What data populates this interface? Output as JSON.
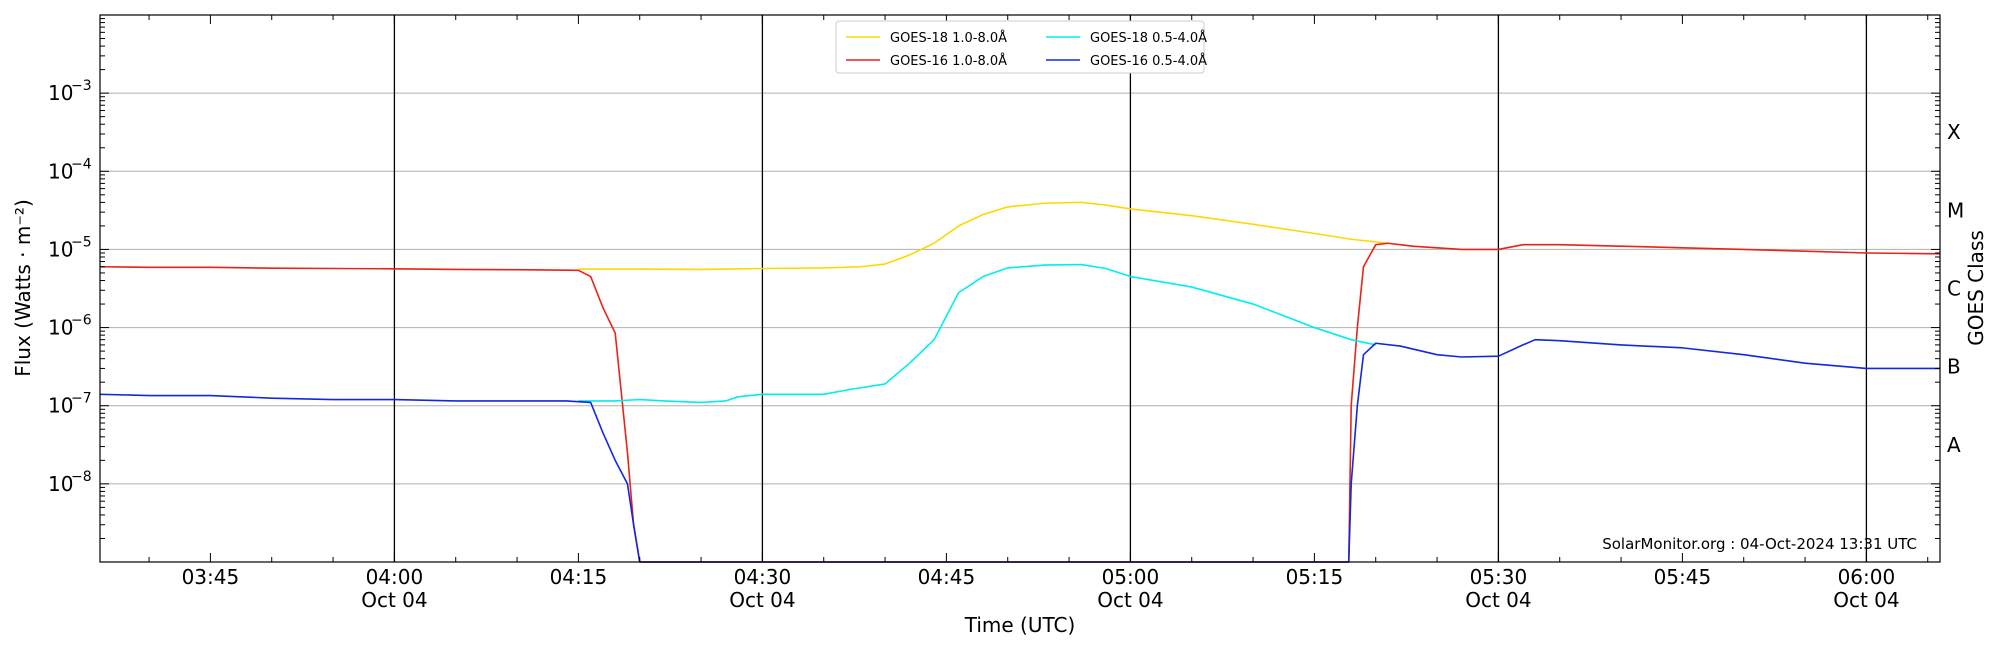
{
  "chart_data": {
    "type": "line",
    "xlabel": "Time (UTC)",
    "ylabel": "Flux (Watts · m⁻²)",
    "y2label": "GOES Class",
    "yscale": "log",
    "xlim": [
      "03:36",
      "06:06"
    ],
    "ylim": [
      1e-09,
      0.01
    ],
    "grid": "horizontal",
    "legend_placement": "top-center",
    "credit": "SolarMonitor.org : 04-Oct-2024 13:31 UTC",
    "x_ticks": [
      {
        "time": "03:45",
        "label": "03:45",
        "sublabel": ""
      },
      {
        "time": "04:00",
        "label": "04:00",
        "sublabel": "Oct 04"
      },
      {
        "time": "04:15",
        "label": "04:15",
        "sublabel": ""
      },
      {
        "time": "04:30",
        "label": "04:30",
        "sublabel": "Oct 04"
      },
      {
        "time": "04:45",
        "label": "04:45",
        "sublabel": ""
      },
      {
        "time": "05:00",
        "label": "05:00",
        "sublabel": "Oct 04"
      },
      {
        "time": "05:15",
        "label": "05:15",
        "sublabel": ""
      },
      {
        "time": "05:30",
        "label": "05:30",
        "sublabel": "Oct 04"
      },
      {
        "time": "05:45",
        "label": "05:45",
        "sublabel": ""
      },
      {
        "time": "06:00",
        "label": "06:00",
        "sublabel": "Oct 04"
      }
    ],
    "vertical_lines": [
      "04:00",
      "04:30",
      "05:00",
      "05:30",
      "06:00"
    ],
    "y_ticks": [
      {
        "value": 1e-08,
        "label": "10",
        "exponent": "−8"
      },
      {
        "value": 1e-07,
        "label": "10",
        "exponent": "−7"
      },
      {
        "value": 1e-06,
        "label": "10",
        "exponent": "−6"
      },
      {
        "value": 1e-05,
        "label": "10",
        "exponent": "−5"
      },
      {
        "value": 0.0001,
        "label": "10",
        "exponent": "−4"
      },
      {
        "value": 0.001,
        "label": "10",
        "exponent": "−3"
      }
    ],
    "gridlines": [
      1e-08,
      1e-07,
      1e-06,
      1e-05,
      0.0001,
      0.001
    ],
    "goes_classes": [
      {
        "label": "A",
        "value": 3.16e-08
      },
      {
        "label": "B",
        "value": 3.16e-07
      },
      {
        "label": "C",
        "value": 3.16e-06
      },
      {
        "label": "M",
        "value": 3.16e-05
      },
      {
        "label": "X",
        "value": 0.000316
      }
    ],
    "series": [
      {
        "name": "GOES-18 1.0-8.0Å",
        "color": "#ffd700",
        "points": [
          [
            "04:15",
            5.6e-06
          ],
          [
            "04:20",
            5.6e-06
          ],
          [
            "04:25",
            5.55e-06
          ],
          [
            "04:27",
            5.6e-06
          ],
          [
            "04:30",
            5.7e-06
          ],
          [
            "04:35",
            5.8e-06
          ],
          [
            "04:38",
            6e-06
          ],
          [
            "04:40",
            6.5e-06
          ],
          [
            "04:42",
            8.5e-06
          ],
          [
            "04:44",
            1.2e-05
          ],
          [
            "04:46",
            2e-05
          ],
          [
            "04:48",
            2.8e-05
          ],
          [
            "04:50",
            3.5e-05
          ],
          [
            "04:53",
            3.9e-05
          ],
          [
            "04:56",
            4e-05
          ],
          [
            "04:58",
            3.7e-05
          ],
          [
            "05:00",
            3.3e-05
          ],
          [
            "05:05",
            2.7e-05
          ],
          [
            "05:10",
            2.1e-05
          ],
          [
            "05:15",
            1.6e-05
          ],
          [
            "05:18",
            1.35e-05
          ],
          [
            "05:21",
            1.2e-05
          ]
        ]
      },
      {
        "name": "GOES-16 1.0-8.0Å",
        "color": "#e8231a",
        "points": [
          [
            "03:36",
            6e-06
          ],
          [
            "03:40",
            5.9e-06
          ],
          [
            "03:45",
            5.9e-06
          ],
          [
            "03:50",
            5.75e-06
          ],
          [
            "03:55",
            5.7e-06
          ],
          [
            "04:00",
            5.65e-06
          ],
          [
            "04:05",
            5.55e-06
          ],
          [
            "04:10",
            5.5e-06
          ],
          [
            "04:15",
            5.4e-06
          ],
          [
            "04:16",
            4.5e-06
          ],
          [
            "04:17",
            1.8e-06
          ],
          [
            "04:18",
            8.5e-07
          ],
          [
            "04:19",
            2.5e-08
          ],
          [
            "04:19.5",
            3e-09
          ],
          [
            "04:20",
            8e-10
          ],
          [
            "05:17.8",
            8e-10
          ],
          [
            "05:18",
            1e-07
          ],
          [
            "05:18.5",
            1e-06
          ],
          [
            "05:19",
            6e-06
          ],
          [
            "05:20",
            1.15e-05
          ],
          [
            "05:21",
            1.2e-05
          ],
          [
            "05:23",
            1.1e-05
          ],
          [
            "05:25",
            1.05e-05
          ],
          [
            "05:27",
            1e-05
          ],
          [
            "05:30",
            1e-05
          ],
          [
            "05:32",
            1.15e-05
          ],
          [
            "05:35",
            1.15e-05
          ],
          [
            "05:40",
            1.1e-05
          ],
          [
            "05:45",
            1.05e-05
          ],
          [
            "05:50",
            1e-05
          ],
          [
            "05:55",
            9.5e-06
          ],
          [
            "06:00",
            9e-06
          ],
          [
            "06:03",
            8.9e-06
          ],
          [
            "06:06",
            8.8e-06
          ]
        ]
      },
      {
        "name": "GOES-18 0.5-4.0Å",
        "color": "#00eeee",
        "points": [
          [
            "04:15",
            1.15e-07
          ],
          [
            "04:18",
            1.15e-07
          ],
          [
            "04:20",
            1.2e-07
          ],
          [
            "04:22",
            1.15e-07
          ],
          [
            "04:25",
            1.1e-07
          ],
          [
            "04:27",
            1.15e-07
          ],
          [
            "04:28",
            1.3e-07
          ],
          [
            "04:30",
            1.4e-07
          ],
          [
            "04:35",
            1.4e-07
          ],
          [
            "04:37",
            1.6e-07
          ],
          [
            "04:40",
            1.9e-07
          ],
          [
            "04:42",
            3.5e-07
          ],
          [
            "04:44",
            7e-07
          ],
          [
            "04:46",
            2.8e-06
          ],
          [
            "04:48",
            4.5e-06
          ],
          [
            "04:50",
            5.8e-06
          ],
          [
            "04:53",
            6.3e-06
          ],
          [
            "04:56",
            6.4e-06
          ],
          [
            "04:58",
            5.7e-06
          ],
          [
            "05:00",
            4.5e-06
          ],
          [
            "05:05",
            3.3e-06
          ],
          [
            "05:10",
            2e-06
          ],
          [
            "05:15",
            1e-06
          ],
          [
            "05:18",
            7e-07
          ],
          [
            "05:20",
            6e-07
          ]
        ]
      },
      {
        "name": "GOES-16 0.5-4.0Å",
        "color": "#1228e0",
        "points": [
          [
            "03:36",
            1.4e-07
          ],
          [
            "03:40",
            1.35e-07
          ],
          [
            "03:45",
            1.35e-07
          ],
          [
            "03:50",
            1.25e-07
          ],
          [
            "03:55",
            1.2e-07
          ],
          [
            "04:00",
            1.2e-07
          ],
          [
            "04:05",
            1.15e-07
          ],
          [
            "04:10",
            1.15e-07
          ],
          [
            "04:14",
            1.15e-07
          ],
          [
            "04:16",
            1.1e-07
          ],
          [
            "04:17",
            4.5e-08
          ],
          [
            "04:18",
            2e-08
          ],
          [
            "04:19",
            1e-08
          ],
          [
            "04:19.5",
            3e-09
          ],
          [
            "04:20",
            8e-10
          ],
          [
            "05:17.8",
            8e-10
          ],
          [
            "05:18",
            1e-08
          ],
          [
            "05:18.5",
            1e-07
          ],
          [
            "05:19",
            4.5e-07
          ],
          [
            "05:20",
            6.3e-07
          ],
          [
            "05:22",
            5.8e-07
          ],
          [
            "05:25",
            4.5e-07
          ],
          [
            "05:27",
            4.2e-07
          ],
          [
            "05:30",
            4.3e-07
          ],
          [
            "05:32",
            6e-07
          ],
          [
            "05:33",
            7e-07
          ],
          [
            "05:35",
            6.8e-07
          ],
          [
            "05:40",
            6e-07
          ],
          [
            "05:45",
            5.5e-07
          ],
          [
            "05:50",
            4.5e-07
          ],
          [
            "05:55",
            3.5e-07
          ],
          [
            "06:00",
            3e-07
          ],
          [
            "06:03",
            3e-07
          ],
          [
            "06:06",
            3e-07
          ]
        ]
      }
    ]
  }
}
